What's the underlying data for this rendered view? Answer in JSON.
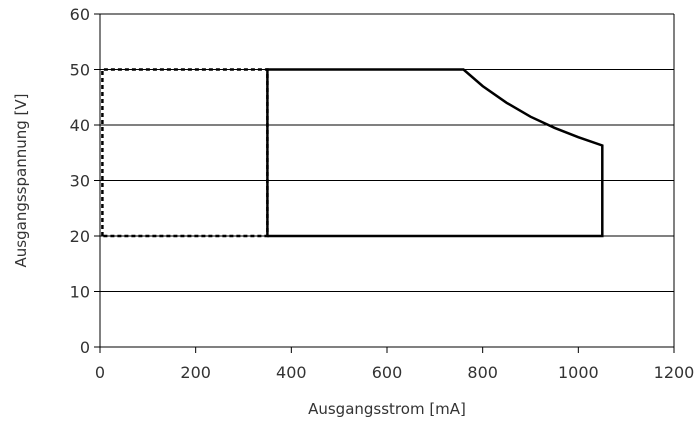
{
  "chart_data": {
    "type": "line",
    "title": "",
    "xlabel": "Ausgangsstrom [mA]",
    "ylabel": "Ausgangsspannung [V]",
    "xlim": [
      0,
      1200
    ],
    "ylim": [
      0,
      60
    ],
    "x_ticks": [
      0,
      200,
      400,
      600,
      800,
      1000,
      1200
    ],
    "y_ticks": [
      0,
      10,
      20,
      30,
      40,
      50,
      60
    ],
    "grid": "horizontal",
    "series": [
      {
        "style": "dashed",
        "points": [
          [
            5,
            20
          ],
          [
            5,
            50
          ],
          [
            350,
            50
          ],
          [
            350,
            20
          ],
          [
            5,
            20
          ]
        ]
      },
      {
        "style": "solid",
        "points": [
          [
            350,
            20
          ],
          [
            350,
            50
          ],
          [
            760,
            50
          ],
          [
            800,
            47
          ],
          [
            850,
            44
          ],
          [
            900,
            41.5
          ],
          [
            950,
            39.5
          ],
          [
            1000,
            37.8
          ],
          [
            1050,
            36.3
          ],
          [
            1050,
            20
          ],
          [
            350,
            20
          ]
        ]
      }
    ],
    "colors": {
      "line": "#000000",
      "grid": "#000000",
      "text": "#333333"
    }
  }
}
